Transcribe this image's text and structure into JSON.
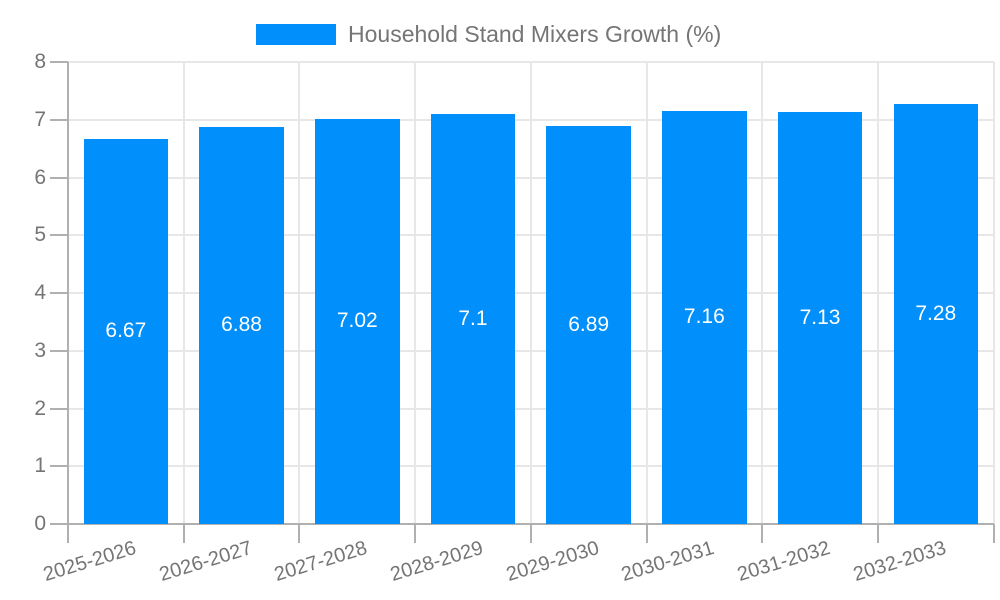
{
  "legend": {
    "label": "Household Stand Mixers Growth (%)"
  },
  "colors": {
    "bar": "#008FFB",
    "data_label": "#FFFFFF",
    "axis_text": "#757575",
    "legend_text": "#757575",
    "grid_line": "#E7E7E7",
    "axis_line": "#B0B0B0"
  },
  "chart_data": {
    "type": "bar",
    "title": "",
    "xlabel": "",
    "ylabel": "",
    "categories": [
      "2025-2026",
      "2026-2027",
      "2027-2028",
      "2028-2029",
      "2029-2030",
      "2030-2031",
      "2031-2032",
      "2032-2033"
    ],
    "series": [
      {
        "name": "Household Stand Mixers Growth (%)",
        "values": [
          6.67,
          6.88,
          7.02,
          7.1,
          6.89,
          7.16,
          7.13,
          7.28
        ],
        "value_labels": [
          "6.67",
          "6.88",
          "7.02",
          "7.1",
          "6.89",
          "7.16",
          "7.13",
          "7.28"
        ]
      }
    ],
    "ylim": [
      0,
      8
    ],
    "yticks": [
      0,
      1,
      2,
      3,
      4,
      5,
      6,
      7,
      8
    ],
    "grid": true,
    "legend_position": "top-center",
    "data_labels_position": "inside-center",
    "x_label_rotation_deg": -17
  }
}
